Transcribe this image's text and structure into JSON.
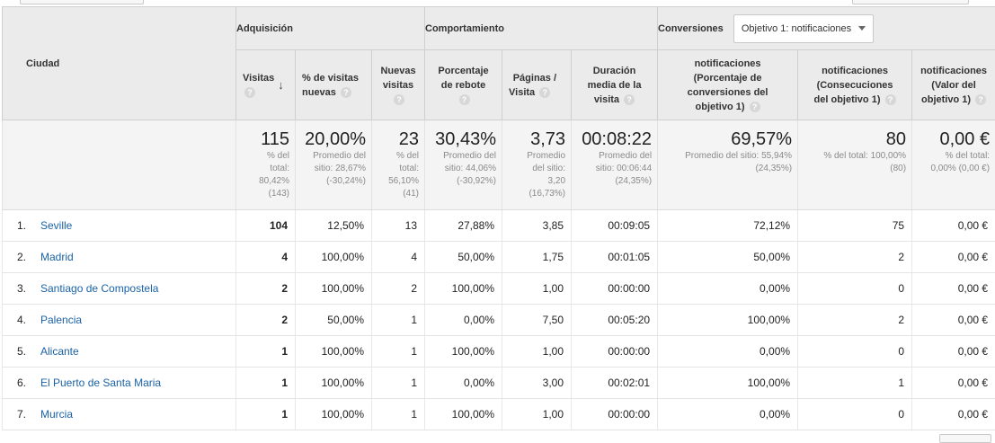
{
  "header": {
    "city_label": "Ciudad",
    "groups": {
      "acquisition": "Adquisición",
      "behavior": "Comportamiento",
      "conversions": "Conversiones"
    },
    "goal_dropdown": {
      "selected": "Objetivo 1: notificaciones"
    },
    "columns": [
      {
        "l1": "Visitas",
        "l2": "",
        "l3": ""
      },
      {
        "l1": "% de visitas",
        "l2": "nuevas",
        "l3": ""
      },
      {
        "l1": "Nuevas",
        "l2": "visitas",
        "l3": ""
      },
      {
        "l1": "Porcentaje",
        "l2": "de rebote",
        "l3": ""
      },
      {
        "l1": "Páginas /",
        "l2": "Visita",
        "l3": ""
      },
      {
        "l1": "Duración",
        "l2": "media de la",
        "l3": "visita"
      },
      {
        "l1": "notificaciones",
        "l2": "(Porcentaje de",
        "l3": "conversiones del",
        "l4": "objetivo 1)"
      },
      {
        "l1": "notificaciones",
        "l2": "(Consecuciones",
        "l3": "del objetivo 1)"
      },
      {
        "l1": "notificaciones",
        "l2": "(Valor del",
        "l3": "objetivo 1)"
      }
    ]
  },
  "totals": [
    {
      "value": "115",
      "sub": [
        "% del",
        "total:",
        "80,42%",
        "(143)"
      ]
    },
    {
      "value": "20,00%",
      "sub": [
        "Promedio del",
        "sitio: 28,67%",
        "(-30,24%)"
      ]
    },
    {
      "value": "23",
      "sub": [
        "% del",
        "total:",
        "56,10%",
        "(41)"
      ]
    },
    {
      "value": "30,43%",
      "sub": [
        "Promedio del",
        "sitio: 44,06%",
        "(-30,92%)"
      ]
    },
    {
      "value": "3,73",
      "sub": [
        "Promedio",
        "del sitio:",
        "3,20",
        "(16,73%)"
      ]
    },
    {
      "value": "00:08:22",
      "sub": [
        "Promedio del",
        "sitio: 00:06:44",
        "(24,35%)"
      ]
    },
    {
      "value": "69,57%",
      "sub": [
        "Promedio del sitio: 55,94%",
        "(24,35%)"
      ]
    },
    {
      "value": "80",
      "sub": [
        "% del total: 100,00%",
        "(80)"
      ]
    },
    {
      "value": "0,00 €",
      "sub": [
        "% del total:",
        "0,00% (0,00 €)"
      ]
    }
  ],
  "rows": [
    {
      "n": "1.",
      "city": "Seville",
      "visits": "104",
      "pct_new": "12,50%",
      "new_visits": "13",
      "bounce": "27,88%",
      "pages": "3,85",
      "duration": "00:09:05",
      "conv_rate": "72,12%",
      "completions": "75",
      "value": "0,00 €"
    },
    {
      "n": "2.",
      "city": "Madrid",
      "visits": "4",
      "pct_new": "100,00%",
      "new_visits": "4",
      "bounce": "50,00%",
      "pages": "1,75",
      "duration": "00:01:05",
      "conv_rate": "50,00%",
      "completions": "2",
      "value": "0,00 €"
    },
    {
      "n": "3.",
      "city": "Santiago de Compostela",
      "visits": "2",
      "pct_new": "100,00%",
      "new_visits": "2",
      "bounce": "100,00%",
      "pages": "1,00",
      "duration": "00:00:00",
      "conv_rate": "0,00%",
      "completions": "0",
      "value": "0,00 €"
    },
    {
      "n": "4.",
      "city": "Palencia",
      "visits": "2",
      "pct_new": "50,00%",
      "new_visits": "1",
      "bounce": "0,00%",
      "pages": "7,50",
      "duration": "00:05:20",
      "conv_rate": "100,00%",
      "completions": "2",
      "value": "0,00 €"
    },
    {
      "n": "5.",
      "city": "Alicante",
      "visits": "1",
      "pct_new": "100,00%",
      "new_visits": "1",
      "bounce": "100,00%",
      "pages": "1,00",
      "duration": "00:00:00",
      "conv_rate": "0,00%",
      "completions": "0",
      "value": "0,00 €"
    },
    {
      "n": "6.",
      "city": "El Puerto de Santa Maria",
      "visits": "1",
      "pct_new": "100,00%",
      "new_visits": "1",
      "bounce": "0,00%",
      "pages": "3,00",
      "duration": "00:02:01",
      "conv_rate": "100,00%",
      "completions": "1",
      "value": "0,00 €"
    },
    {
      "n": "7.",
      "city": "Murcia",
      "visits": "1",
      "pct_new": "100,00%",
      "new_visits": "1",
      "bounce": "100,00%",
      "pages": "1,00",
      "duration": "00:00:00",
      "conv_rate": "0,00%",
      "completions": "0",
      "value": "0,00 €"
    }
  ],
  "colors": {
    "link": "#1a62a5",
    "header_bg": "#ebebeb",
    "totals_bg": "#f4f4f4"
  },
  "icons": {
    "help": "help-circle-icon",
    "sort": "arrow-down-icon",
    "dropdown": "caret-down-icon"
  }
}
